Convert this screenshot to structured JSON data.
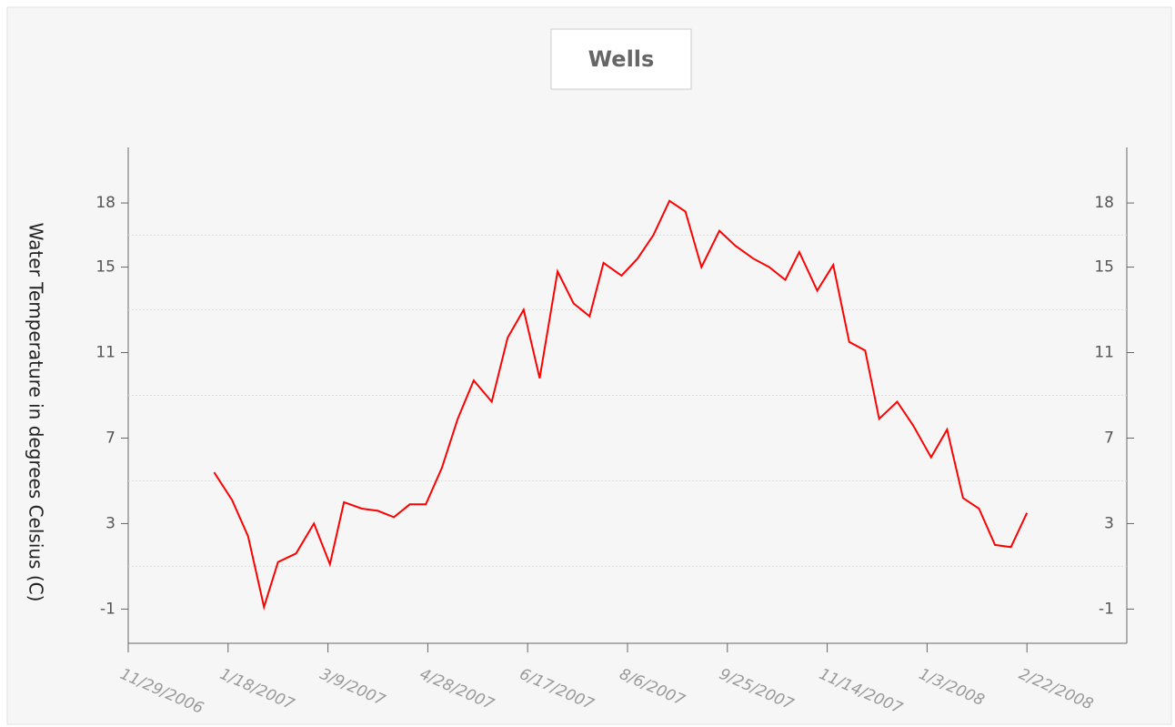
{
  "chart_data": {
    "type": "line",
    "title": "Wells",
    "y_label": "Water Temperature in degrees Celsius (C)",
    "color": "#ff0000",
    "x": [
      "2007-01-11",
      "2007-01-20",
      "2007-01-28",
      "2007-02-05",
      "2007-02-12",
      "2007-02-21",
      "2007-03-02",
      "2007-03-10",
      "2007-03-17",
      "2007-03-26",
      "2007-04-03",
      "2007-04-11",
      "2007-04-19",
      "2007-04-27",
      "2007-05-05",
      "2007-05-13",
      "2007-05-21",
      "2007-05-30",
      "2007-06-07",
      "2007-06-15",
      "2007-06-23",
      "2007-07-02",
      "2007-07-10",
      "2007-07-18",
      "2007-07-25",
      "2007-08-03",
      "2007-08-11",
      "2007-08-19",
      "2007-08-27",
      "2007-09-04",
      "2007-09-12",
      "2007-09-21",
      "2007-09-29",
      "2007-10-08",
      "2007-10-16",
      "2007-10-24",
      "2007-10-31",
      "2007-11-09",
      "2007-11-17",
      "2007-11-25",
      "2007-12-03",
      "2007-12-10",
      "2007-12-19",
      "2007-12-27",
      "2008-01-05",
      "2008-01-13",
      "2008-01-21",
      "2008-01-29",
      "2008-02-06",
      "2008-02-14",
      "2008-02-22"
    ],
    "values": [
      5.4,
      4.1,
      2.4,
      -0.9,
      1.2,
      1.6,
      3.0,
      1.1,
      4.0,
      3.7,
      3.6,
      3.3,
      3.9,
      3.9,
      5.6,
      7.9,
      9.7,
      8.7,
      11.7,
      13.0,
      9.8,
      14.8,
      13.3,
      12.7,
      15.2,
      14.6,
      15.4,
      16.5,
      18.1,
      17.6,
      15.0,
      16.7,
      16.0,
      15.4,
      15.0,
      14.4,
      15.7,
      13.9,
      15.1,
      11.5,
      11.1,
      7.9,
      8.7,
      7.6,
      6.1,
      7.4,
      4.2,
      3.7,
      2.0,
      1.9,
      3.5
    ],
    "xlim": [
      "2006-11-29",
      "2008-04-12"
    ],
    "xticks": [
      {
        "value": "2006-11-29",
        "label": "11/29/2006"
      },
      {
        "value": "2007-01-18",
        "label": "1/18/2007"
      },
      {
        "value": "2007-03-09",
        "label": "3/9/2007"
      },
      {
        "value": "2007-04-28",
        "label": "4/28/2007"
      },
      {
        "value": "2007-06-17",
        "label": "6/17/2007"
      },
      {
        "value": "2007-08-06",
        "label": "8/6/2007"
      },
      {
        "value": "2007-09-25",
        "label": "9/25/2007"
      },
      {
        "value": "2007-11-14",
        "label": "11/14/2007"
      },
      {
        "value": "2008-01-03",
        "label": "1/3/2008"
      },
      {
        "value": "2008-02-22",
        "label": "2/22/2008"
      }
    ],
    "ylim": [
      -2.6,
      20.6
    ],
    "yticks": [
      -1,
      3,
      7,
      11,
      15,
      18
    ],
    "minor_yticks": [
      1,
      5,
      9,
      13,
      16.5
    ],
    "grid": true
  }
}
